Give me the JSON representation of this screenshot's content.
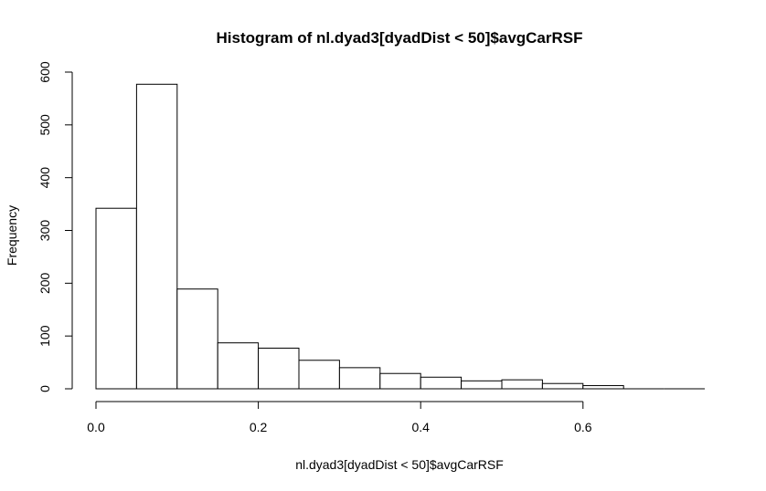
{
  "chart_data": {
    "type": "bar",
    "title": "Histogram of nl.dyad3[dyadDist < 50]$avgCarRSF",
    "xlabel": "nl.dyad3[dyadDist < 50]$avgCarRSF",
    "ylabel": "Frequency",
    "bin_width": 0.05,
    "bins": [
      {
        "start": 0.0,
        "end": 0.05,
        "value": 342
      },
      {
        "start": 0.05,
        "end": 0.1,
        "value": 577
      },
      {
        "start": 0.1,
        "end": 0.15,
        "value": 189
      },
      {
        "start": 0.15,
        "end": 0.2,
        "value": 87
      },
      {
        "start": 0.2,
        "end": 0.25,
        "value": 77
      },
      {
        "start": 0.25,
        "end": 0.3,
        "value": 54
      },
      {
        "start": 0.3,
        "end": 0.35,
        "value": 40
      },
      {
        "start": 0.35,
        "end": 0.4,
        "value": 29
      },
      {
        "start": 0.4,
        "end": 0.45,
        "value": 22
      },
      {
        "start": 0.45,
        "end": 0.5,
        "value": 15
      },
      {
        "start": 0.5,
        "end": 0.55,
        "value": 17
      },
      {
        "start": 0.55,
        "end": 0.6,
        "value": 10
      },
      {
        "start": 0.6,
        "end": 0.65,
        "value": 6
      },
      {
        "start": 0.65,
        "end": 0.7,
        "value": 0
      },
      {
        "start": 0.7,
        "end": 0.75,
        "value": 0
      }
    ],
    "xlim": [
      0,
      0.75
    ],
    "ylim": [
      0,
      600
    ],
    "x_ticks": [
      0.0,
      0.2,
      0.4,
      0.6
    ],
    "x_tick_labels": [
      "0.0",
      "0.2",
      "0.4",
      "0.6"
    ],
    "y_ticks": [
      0,
      100,
      200,
      300,
      400,
      500,
      600
    ],
    "y_tick_labels": [
      "0",
      "100",
      "200",
      "300",
      "400",
      "500",
      "600"
    ],
    "grid": false,
    "legend": "none",
    "colors": {
      "bar_fill": "#ffffff",
      "bar_stroke": "#000000",
      "axis": "#000000",
      "background": "#ffffff"
    }
  }
}
